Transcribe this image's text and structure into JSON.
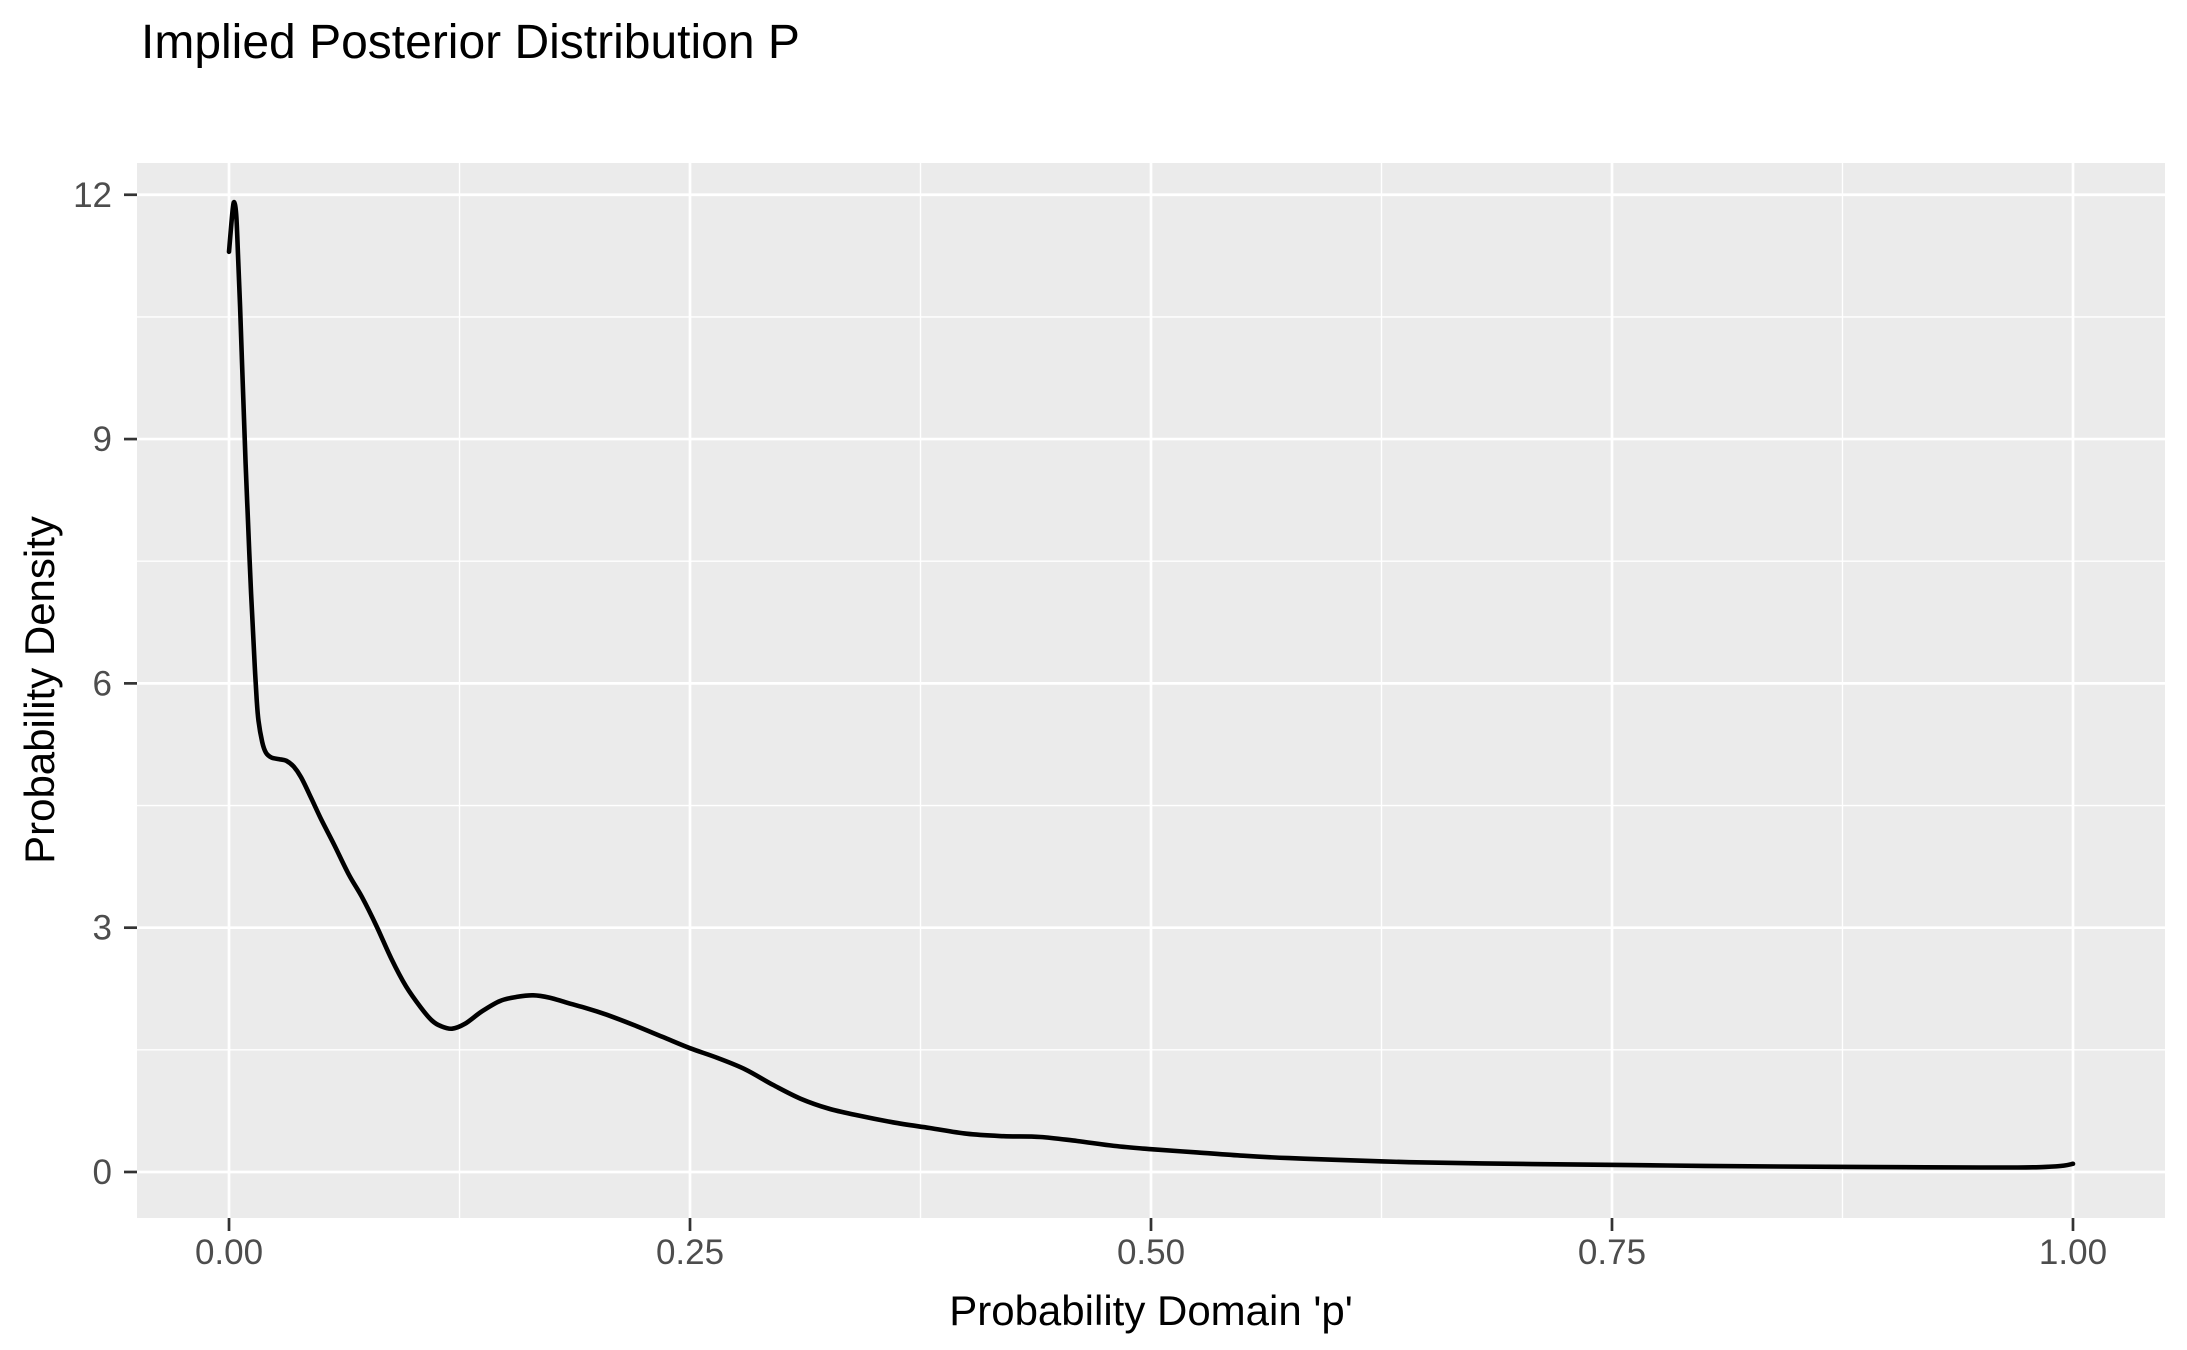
{
  "chart_data": {
    "type": "line",
    "title": "Implied Posterior Distribution P",
    "xlabel": "Probability Domain 'p'",
    "ylabel": "Probability Density",
    "legend": "none",
    "grid": "on",
    "x_axis": {
      "range": [
        -0.0499,
        1.0499
      ],
      "major_ticks": [
        0.0,
        0.25,
        0.5,
        0.75,
        1.0
      ],
      "tick_labels": [
        "0.00",
        "0.25",
        "0.50",
        "0.75",
        "1.00"
      ],
      "minor_ticks": [
        0.125,
        0.375,
        0.625,
        0.875
      ]
    },
    "y_axis": {
      "range": [
        -0.565,
        12.39
      ],
      "major_ticks": [
        0,
        3,
        6,
        9,
        12
      ],
      "tick_labels": [
        "0",
        "3",
        "6",
        "9",
        "12"
      ],
      "minor_ticks": [
        1.5,
        4.5,
        7.5,
        10.5
      ]
    },
    "series": [
      {
        "name": "posterior-density-curve",
        "points": [
          [
            0.0,
            11.3
          ],
          [
            0.002,
            11.82
          ],
          [
            0.003,
            11.9
          ],
          [
            0.004,
            11.72
          ],
          [
            0.005,
            11.2
          ],
          [
            0.006,
            10.62
          ],
          [
            0.007,
            9.98
          ],
          [
            0.008,
            9.32
          ],
          [
            0.009,
            8.7
          ],
          [
            0.01,
            8.14
          ],
          [
            0.011,
            7.6
          ],
          [
            0.012,
            7.1
          ],
          [
            0.013,
            6.64
          ],
          [
            0.014,
            6.2
          ],
          [
            0.015,
            5.8
          ],
          [
            0.016,
            5.54
          ],
          [
            0.018,
            5.28
          ],
          [
            0.02,
            5.15
          ],
          [
            0.023,
            5.09
          ],
          [
            0.027,
            5.07
          ],
          [
            0.031,
            5.05
          ],
          [
            0.035,
            4.98
          ],
          [
            0.039,
            4.85
          ],
          [
            0.044,
            4.62
          ],
          [
            0.05,
            4.33
          ],
          [
            0.057,
            4.02
          ],
          [
            0.065,
            3.65
          ],
          [
            0.072,
            3.38
          ],
          [
            0.08,
            3.02
          ],
          [
            0.088,
            2.62
          ],
          [
            0.096,
            2.28
          ],
          [
            0.104,
            2.02
          ],
          [
            0.11,
            1.86
          ],
          [
            0.115,
            1.79
          ],
          [
            0.121,
            1.76
          ],
          [
            0.128,
            1.82
          ],
          [
            0.137,
            1.97
          ],
          [
            0.147,
            2.1
          ],
          [
            0.156,
            2.15
          ],
          [
            0.165,
            2.17
          ],
          [
            0.174,
            2.14
          ],
          [
            0.183,
            2.08
          ],
          [
            0.194,
            2.01
          ],
          [
            0.205,
            1.93
          ],
          [
            0.22,
            1.8
          ],
          [
            0.235,
            1.66
          ],
          [
            0.25,
            1.52
          ],
          [
            0.265,
            1.4
          ],
          [
            0.28,
            1.26
          ],
          [
            0.295,
            1.07
          ],
          [
            0.31,
            0.9
          ],
          [
            0.325,
            0.78
          ],
          [
            0.34,
            0.7
          ],
          [
            0.36,
            0.61
          ],
          [
            0.38,
            0.54
          ],
          [
            0.4,
            0.47
          ],
          [
            0.42,
            0.44
          ],
          [
            0.44,
            0.43
          ],
          [
            0.46,
            0.38
          ],
          [
            0.48,
            0.32
          ],
          [
            0.5,
            0.28
          ],
          [
            0.525,
            0.24
          ],
          [
            0.55,
            0.2
          ],
          [
            0.575,
            0.17
          ],
          [
            0.6,
            0.15
          ],
          [
            0.64,
            0.12
          ],
          [
            0.68,
            0.105
          ],
          [
            0.72,
            0.095
          ],
          [
            0.76,
            0.085
          ],
          [
            0.8,
            0.075
          ],
          [
            0.84,
            0.068
          ],
          [
            0.88,
            0.062
          ],
          [
            0.92,
            0.058
          ],
          [
            0.95,
            0.055
          ],
          [
            0.97,
            0.055
          ],
          [
            0.985,
            0.062
          ],
          [
            0.995,
            0.078
          ],
          [
            1.0,
            0.1
          ]
        ]
      }
    ],
    "colors": {
      "panel_background": "#EBEBEB",
      "gridline": "#FFFFFF",
      "curve": "#000000",
      "tick_label": "#4D4D4D",
      "tick_mark": "#333333",
      "title_text": "#000000",
      "axis_title_text": "#000000",
      "page_background": "#FFFFFF"
    }
  }
}
